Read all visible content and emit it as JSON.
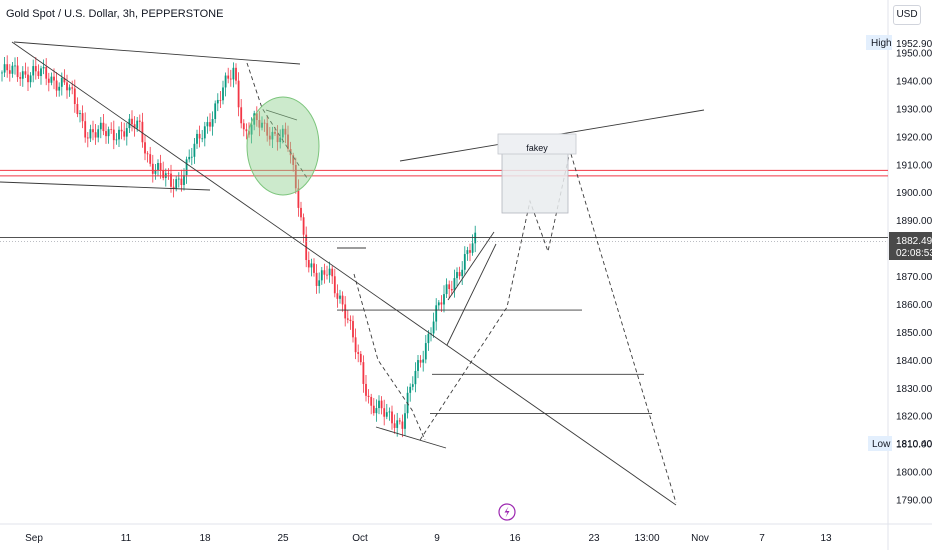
{
  "header": {
    "title": "Gold Spot / U.S. Dollar, 3h, PEPPERSTONE",
    "currency": "USD"
  },
  "price_axis": {
    "ticks": [
      "1790.00",
      "1800.00",
      "1810.00",
      "1820.00",
      "1830.00",
      "1840.00",
      "1850.00",
      "1860.00",
      "1870.00",
      "1880.00",
      "1890.00",
      "1900.00",
      "1910.00",
      "1920.00",
      "1930.00",
      "1940.00",
      "1950.00"
    ],
    "high_label": "High",
    "high_value": "1952.90",
    "low_label": "Low",
    "low_value": "1810.40",
    "current_value": "1882.49",
    "countdown": "02:08:53"
  },
  "time_axis": {
    "labels": [
      "Sep",
      "11",
      "18",
      "25",
      "Oct",
      "9",
      "16",
      "23",
      "13:00",
      "Nov",
      "7",
      "13"
    ]
  },
  "annotation": {
    "fakey_label": "fakey"
  },
  "colors": {
    "up": "#089981",
    "down": "#f23645",
    "drawing": "#3a3a3a",
    "horizontal_red": "#f23645",
    "circle_fill": "#8fd18f",
    "box_fill": "#e9ecef",
    "accent": "#9c27b0"
  },
  "chart_data": {
    "type": "candlestick",
    "title": "Gold Spot / U.S. Dollar, 3h, PEPPERSTONE",
    "xlabel": "",
    "ylabel": "",
    "ylim": [
      1785,
      1960
    ],
    "high": 1952.9,
    "low": 1810.4,
    "current": 1882.49,
    "close_path": [
      {
        "date": "2023-09-01",
        "close": 1943
      },
      {
        "date": "2023-09-04",
        "close": 1939
      },
      {
        "date": "2023-09-06",
        "close": 1922
      },
      {
        "date": "2023-09-08",
        "close": 1921
      },
      {
        "date": "2023-09-11",
        "close": 1924
      },
      {
        "date": "2023-09-12",
        "close": 1911
      },
      {
        "date": "2023-09-14",
        "close": 1903
      },
      {
        "date": "2023-09-15",
        "close": 1906
      },
      {
        "date": "2023-09-18",
        "close": 1929
      },
      {
        "date": "2023-09-20",
        "close": 1944
      },
      {
        "date": "2023-09-21",
        "close": 1921
      },
      {
        "date": "2023-09-22",
        "close": 1925
      },
      {
        "date": "2023-09-25",
        "close": 1919
      },
      {
        "date": "2023-09-26",
        "close": 1901
      },
      {
        "date": "2023-09-27",
        "close": 1876
      },
      {
        "date": "2023-09-28",
        "close": 1866
      },
      {
        "date": "2023-09-29",
        "close": 1874
      },
      {
        "date": "2023-10-02",
        "close": 1840
      },
      {
        "date": "2023-10-03",
        "close": 1823
      },
      {
        "date": "2023-10-05",
        "close": 1820
      },
      {
        "date": "2023-10-06",
        "close": 1817
      },
      {
        "date": "2023-10-07",
        "close": 1832
      },
      {
        "date": "2023-10-09",
        "close": 1855
      },
      {
        "date": "2023-10-11",
        "close": 1870
      },
      {
        "date": "2023-10-13",
        "close": 1882.49
      }
    ],
    "horizontal_levels": [
      {
        "price": 1908,
        "color": "red"
      },
      {
        "price": 1906,
        "color": "red"
      },
      {
        "price": 1884,
        "color": "dark"
      },
      {
        "price": 1858,
        "color": "dark"
      },
      {
        "price": 1835,
        "color": "dark"
      },
      {
        "price": 1821,
        "color": "dark"
      }
    ],
    "fakey_zone": {
      "price_low": 1891,
      "price_high": 1916
    },
    "projection_path": [
      1859,
      1897,
      1879,
      1915,
      1789
    ]
  }
}
